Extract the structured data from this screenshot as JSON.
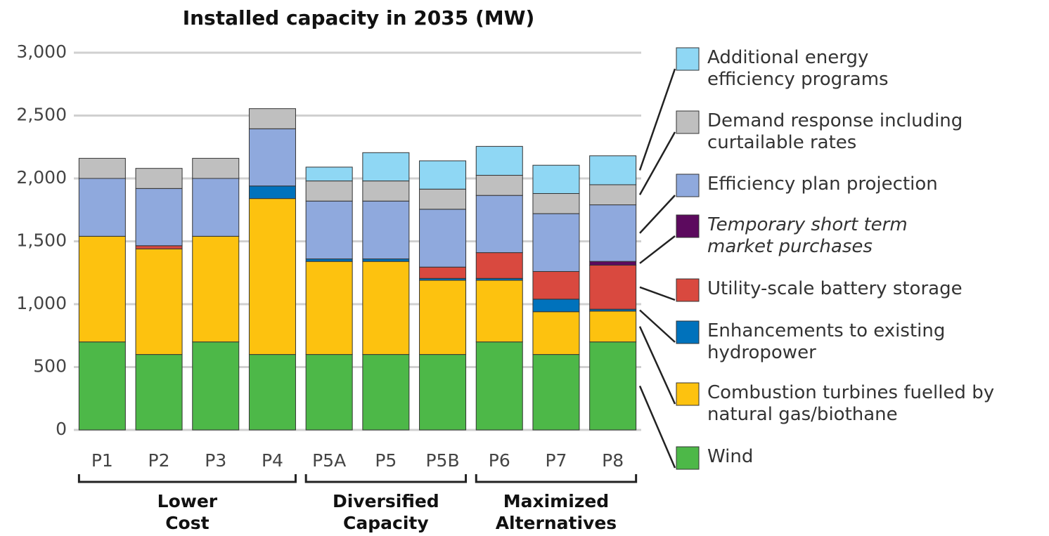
{
  "chart_data": {
    "type": "stacked_bar",
    "title": "Installed capacity in 2035 (MW)",
    "categories": [
      "P1",
      "P2",
      "P3",
      "P4",
      "P5A",
      "P5",
      "P5B",
      "P6",
      "P7",
      "P8"
    ],
    "series": [
      {
        "name": "Wind",
        "color": "#4db848",
        "values": [
          700,
          600,
          700,
          600,
          600,
          600,
          600,
          700,
          600,
          700
        ]
      },
      {
        "name": "Combustion turbines fuelled by\nnatural gas/biothane",
        "color": "#fdc20f",
        "values": [
          840,
          840,
          840,
          1240,
          740,
          740,
          590,
          490,
          340,
          245
        ]
      },
      {
        "name": "Enhancements to existing\nhydropower",
        "color": "#0072bc",
        "values": [
          0,
          0,
          0,
          100,
          20,
          20,
          15,
          15,
          100,
          15
        ]
      },
      {
        "name": "Utility-scale battery storage",
        "color": "#d9493f",
        "values": [
          0,
          25,
          0,
          0,
          0,
          0,
          90,
          205,
          220,
          350
        ]
      },
      {
        "name": "Temporary short term\nmarket purchases",
        "color": "#5c0a5e",
        "values": [
          0,
          0,
          0,
          0,
          0,
          0,
          0,
          0,
          0,
          30
        ]
      },
      {
        "name": "Efficiency plan projection",
        "color": "#8fa9dd",
        "values": [
          460,
          455,
          460,
          455,
          460,
          460,
          460,
          455,
          460,
          450
        ]
      },
      {
        "name": "Demand response including\ncurtailable rates",
        "color": "#bfbfbf",
        "values": [
          160,
          160,
          160,
          160,
          160,
          160,
          160,
          160,
          160,
          160
        ]
      },
      {
        "name": "Additional energy\nefficiency programs",
        "color": "#8fd7f4",
        "values": [
          0,
          0,
          0,
          0,
          110,
          225,
          225,
          230,
          225,
          230
        ]
      }
    ],
    "groups": [
      {
        "label": "Lower\nCost",
        "categories": [
          "P1",
          "P2",
          "P3",
          "P4"
        ]
      },
      {
        "label": "Diversified\nCapacity",
        "categories": [
          "P5A",
          "P5",
          "P5B"
        ]
      },
      {
        "label": "Maximized\nAlternatives",
        "categories": [
          "P6",
          "P7",
          "P8"
        ]
      }
    ],
    "ylim": [
      0,
      3000
    ],
    "yticks": [
      0,
      {
        "value": 500,
        "label": "500"
      },
      {
        "value": 1000,
        "label": "1,000"
      },
      {
        "value": 1500,
        "label": "1,500"
      },
      {
        "value": 2000,
        "label": "2,000"
      },
      {
        "value": 2500,
        "label": "2,500"
      },
      {
        "value": 3000,
        "label": "3,000"
      }
    ],
    "grid": true
  }
}
